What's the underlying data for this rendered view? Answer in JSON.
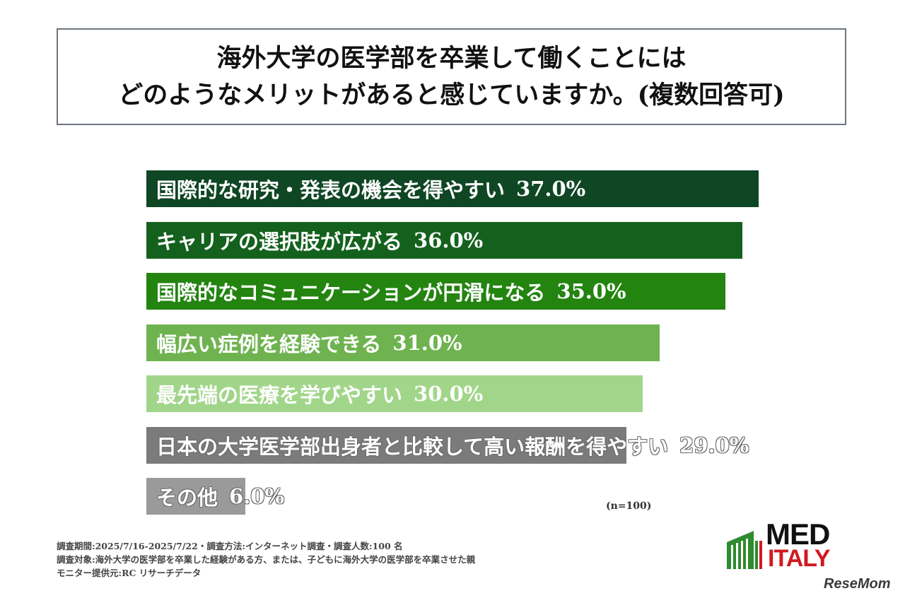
{
  "title": {
    "line1": "海外大学の医学部を卒業して働くことには",
    "line2": "どのようなメリットがあると感じていますか。(複数回答可)"
  },
  "chart_data": {
    "type": "bar",
    "orientation": "horizontal",
    "categories": [
      "国際的な研究・発表の機会を得やすい",
      "キャリアの選択肢が広がる",
      "国際的なコミュニケーションが円滑になる",
      "幅広い症例を経験できる",
      "最先端の医療を学びやすい",
      "日本の大学医学部出身者と比較して高い報酬を得やすい",
      "その他"
    ],
    "values": [
      37.0,
      36.0,
      35.0,
      31.0,
      30.0,
      29.0,
      6.0
    ],
    "value_labels": [
      "37.0%",
      "36.0%",
      "35.0%",
      "31.0%",
      "30.0%",
      "29.0%",
      "6.0%"
    ],
    "colors": [
      "#0f4624",
      "#14611e",
      "#238410",
      "#6fb350",
      "#a1d68a",
      "#7b7b7b",
      "#9a9a9a"
    ],
    "xlim": [
      0,
      37.0
    ],
    "grid": false,
    "legend": "none"
  },
  "sample_note": "(n=100)",
  "footnotes": [
    "調査期間:2025/7/16-2025/7/22・調査方法:インターネット調査・調査人数:100 名",
    "調査対象:海外大学の医学部を卒業した経験がある方、または、子どもに海外大学の医学部を卒業させた親",
    "モニター提供元:RC リサーチデータ"
  ],
  "logo": {
    "line1": "MED",
    "line2": "ITALY"
  },
  "watermark": "ReseMom",
  "colors": {
    "logo_green": "#2e8b2e",
    "logo_red": "#d1191f"
  }
}
